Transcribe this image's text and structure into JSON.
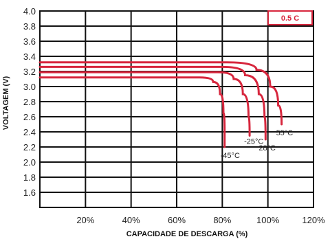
{
  "chart_data": {
    "type": "line",
    "badge": "0.5 C",
    "xlabel": "CAPACIDADE DE DESCARGA (%)",
    "ylabel": "VOLTAGEM (V)",
    "xlim": [
      0,
      120
    ],
    "ylim": [
      1.4,
      4.0
    ],
    "xticks": [
      {
        "value": 20,
        "label": "20%"
      },
      {
        "value": 40,
        "label": "40%"
      },
      {
        "value": 60,
        "label": "60%"
      },
      {
        "value": 80,
        "label": "80%"
      },
      {
        "value": 100,
        "label": "100%"
      },
      {
        "value": 120,
        "label": "120%"
      }
    ],
    "yticks": [
      {
        "value": 4.0,
        "label": "4.0"
      },
      {
        "value": 3.8,
        "label": "3.8"
      },
      {
        "value": 3.6,
        "label": "3.6"
      },
      {
        "value": 3.4,
        "label": "3.4"
      },
      {
        "value": 3.2,
        "label": "3.2"
      },
      {
        "value": 3.0,
        "label": "3.0"
      },
      {
        "value": 2.8,
        "label": "2.8"
      },
      {
        "value": 2.6,
        "label": "2.6"
      },
      {
        "value": 2.4,
        "label": "2.4"
      },
      {
        "value": 2.2,
        "label": "2.2"
      },
      {
        "value": 2.0,
        "label": "2.0"
      },
      {
        "value": 1.8,
        "label": "1.8"
      },
      {
        "value": 1.6,
        "label": "1.6"
      }
    ],
    "grid": true,
    "line_color": "#d7263d",
    "series": [
      {
        "name": "-45°C",
        "points": [
          [
            0,
            3.12
          ],
          [
            70,
            3.12
          ],
          [
            76,
            3.06
          ],
          [
            79,
            2.9
          ],
          [
            80.5,
            2.65
          ],
          [
            81,
            2.4
          ],
          [
            81,
            2.2
          ]
        ]
      },
      {
        "name": "-25°C",
        "points": [
          [
            0,
            3.19
          ],
          [
            78,
            3.19
          ],
          [
            85,
            3.1
          ],
          [
            89,
            2.9
          ],
          [
            91.5,
            2.6
          ],
          [
            92,
            2.35
          ]
        ]
      },
      {
        "name": "28°C",
        "points": [
          [
            0,
            3.26
          ],
          [
            80,
            3.26
          ],
          [
            90,
            3.15
          ],
          [
            96,
            2.9
          ],
          [
            98.5,
            2.6
          ],
          [
            99,
            2.3
          ]
        ]
      },
      {
        "name": "55°C",
        "points": [
          [
            0,
            3.32
          ],
          [
            82,
            3.32
          ],
          [
            95,
            3.22
          ],
          [
            101,
            3.0
          ],
          [
            104.5,
            2.75
          ],
          [
            106,
            2.5
          ]
        ]
      }
    ]
  }
}
